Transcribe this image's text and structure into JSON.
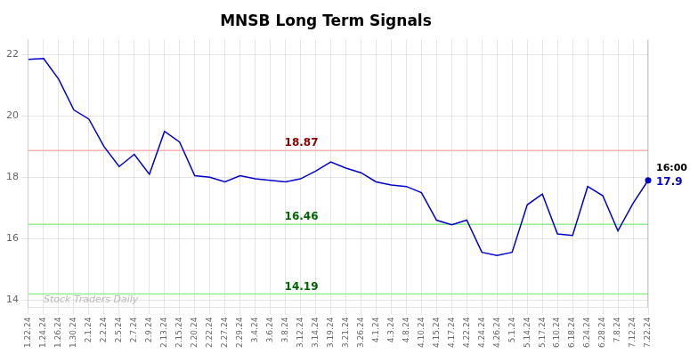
{
  "chart_data": {
    "type": "line",
    "title": "MNSB Long Term Signals",
    "categories": [
      "1.22.24",
      "1.24.24",
      "1.26.24",
      "1.30.24",
      "2.1.24",
      "2.2.24",
      "2.5.24",
      "2.7.24",
      "2.9.24",
      "2.13.24",
      "2.15.24",
      "2.20.24",
      "2.22.24",
      "2.27.24",
      "2.29.24",
      "3.4.24",
      "3.6.24",
      "3.8.24",
      "3.12.24",
      "3.14.24",
      "3.19.24",
      "3.21.24",
      "3.26.24",
      "4.1.24",
      "4.3.24",
      "4.8.24",
      "4.10.24",
      "4.15.24",
      "4.17.24",
      "4.22.24",
      "4.24.24",
      "4.26.24",
      "5.1.24",
      "5.14.24",
      "5.17.24",
      "6.10.24",
      "6.18.24",
      "6.24.24",
      "6.28.24",
      "7.8.24",
      "7.12.24",
      "7.22.24"
    ],
    "values": [
      21.85,
      21.88,
      21.2,
      20.2,
      19.9,
      19.0,
      18.35,
      18.75,
      18.1,
      19.5,
      19.15,
      18.05,
      18.0,
      17.85,
      18.05,
      17.95,
      17.9,
      17.85,
      17.95,
      18.2,
      18.5,
      18.3,
      18.15,
      17.85,
      17.75,
      17.7,
      17.5,
      16.6,
      16.45,
      16.6,
      15.55,
      15.45,
      15.55,
      17.1,
      17.45,
      16.15,
      16.1,
      17.7,
      17.4,
      16.25,
      17.15,
      17.9
    ],
    "color": "#0000cc",
    "ylim": [
      13.75,
      22.5
    ],
    "yticks": [
      14,
      16,
      18,
      20,
      22
    ],
    "grid": true,
    "hlines": [
      {
        "value": 18.87,
        "label": "18.87",
        "color": "#ffb0b0",
        "label_color": "#880000"
      },
      {
        "value": 16.46,
        "label": "16.46",
        "color": "#90ee90",
        "label_color": "#006600"
      },
      {
        "value": 14.19,
        "label": "14.19",
        "color": "#90ee90",
        "label_color": "#006600"
      }
    ],
    "annotations": [
      {
        "text": "16:00",
        "color": "#000000"
      },
      {
        "text": "17.9",
        "color": "#0000cc"
      }
    ],
    "watermark": {
      "text": "Stock Traders Daily",
      "color": "#b0b0b0"
    }
  }
}
